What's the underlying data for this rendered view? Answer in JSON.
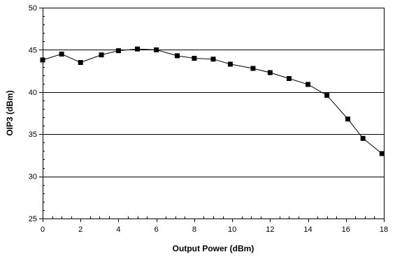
{
  "chart_data": {
    "type": "line",
    "title": "",
    "xlabel": "Output Power (dBm)",
    "ylabel": "OIP3 (dBm)",
    "xlim": [
      0,
      18
    ],
    "ylim": [
      25,
      50
    ],
    "xticks": [
      0,
      2,
      4,
      6,
      8,
      10,
      12,
      14,
      16,
      18
    ],
    "yticks": [
      25,
      30,
      35,
      40,
      45,
      50
    ],
    "grid": "horizontal",
    "legend": "none",
    "series": [
      {
        "marker": "square",
        "color": "#000000",
        "points": [
          [
            0.0,
            43.8
          ],
          [
            1.0,
            44.5
          ],
          [
            2.0,
            43.5
          ],
          [
            3.1,
            44.4
          ],
          [
            4.0,
            44.9
          ],
          [
            5.0,
            45.1
          ],
          [
            6.0,
            45.0
          ],
          [
            7.1,
            44.3
          ],
          [
            8.0,
            44.0
          ],
          [
            9.0,
            43.9
          ],
          [
            9.9,
            43.3
          ],
          [
            11.1,
            42.8
          ],
          [
            12.0,
            42.3
          ],
          [
            13.0,
            41.6
          ],
          [
            14.0,
            40.9
          ],
          [
            15.0,
            39.6
          ],
          [
            16.1,
            36.8
          ],
          [
            16.9,
            34.5
          ],
          [
            17.9,
            32.7
          ]
        ]
      }
    ]
  }
}
